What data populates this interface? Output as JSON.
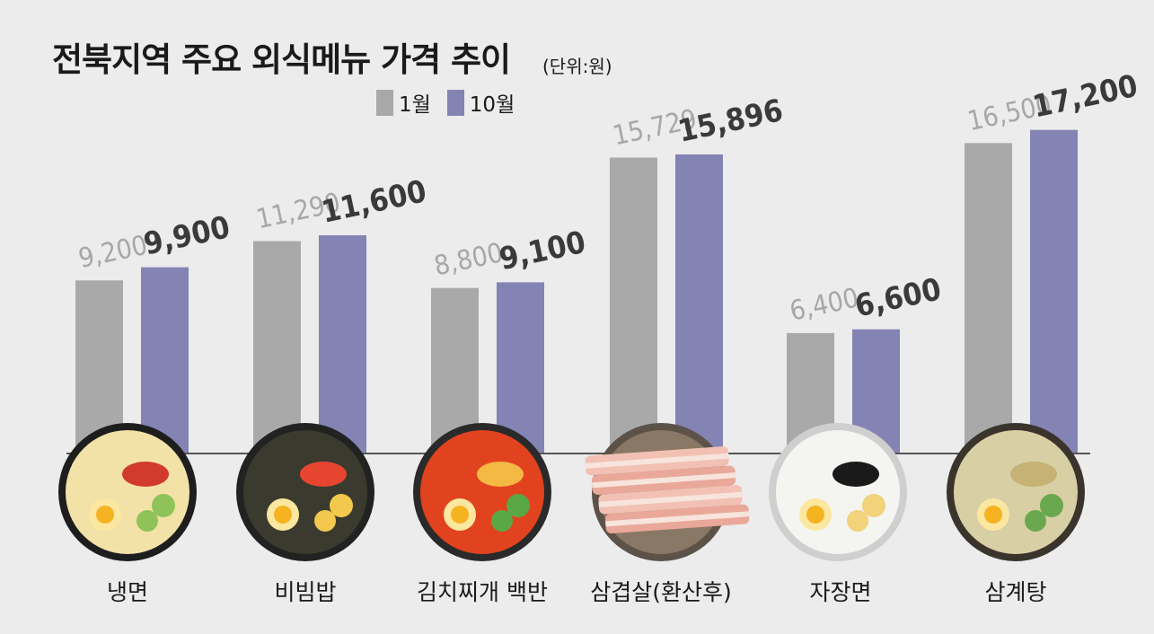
{
  "chart_data": {
    "type": "bar",
    "title": "전북지역 주요 외식메뉴 가격 추이",
    "unit": "(단위:원)",
    "categories": [
      "냉면",
      "비빔밥",
      "김치찌개 백반",
      "삼겹살(환산후)",
      "자장면",
      "삼계탕"
    ],
    "series": [
      {
        "name": "1월",
        "values": [
          9200,
          11290,
          8800,
          15729,
          6400,
          16500
        ],
        "labels": [
          "9,200",
          "11,290",
          "8,800",
          "15,729",
          "6,400",
          "16,500"
        ],
        "color": "#a9a9aa"
      },
      {
        "name": "10월",
        "values": [
          9900,
          11600,
          9100,
          15896,
          6600,
          17200
        ],
        "labels": [
          "9,900",
          "11,600",
          "9,100",
          "15,896",
          "6,600",
          "17,200"
        ],
        "color": "#8383b4"
      }
    ],
    "legend": "top",
    "grid": false
  }
}
